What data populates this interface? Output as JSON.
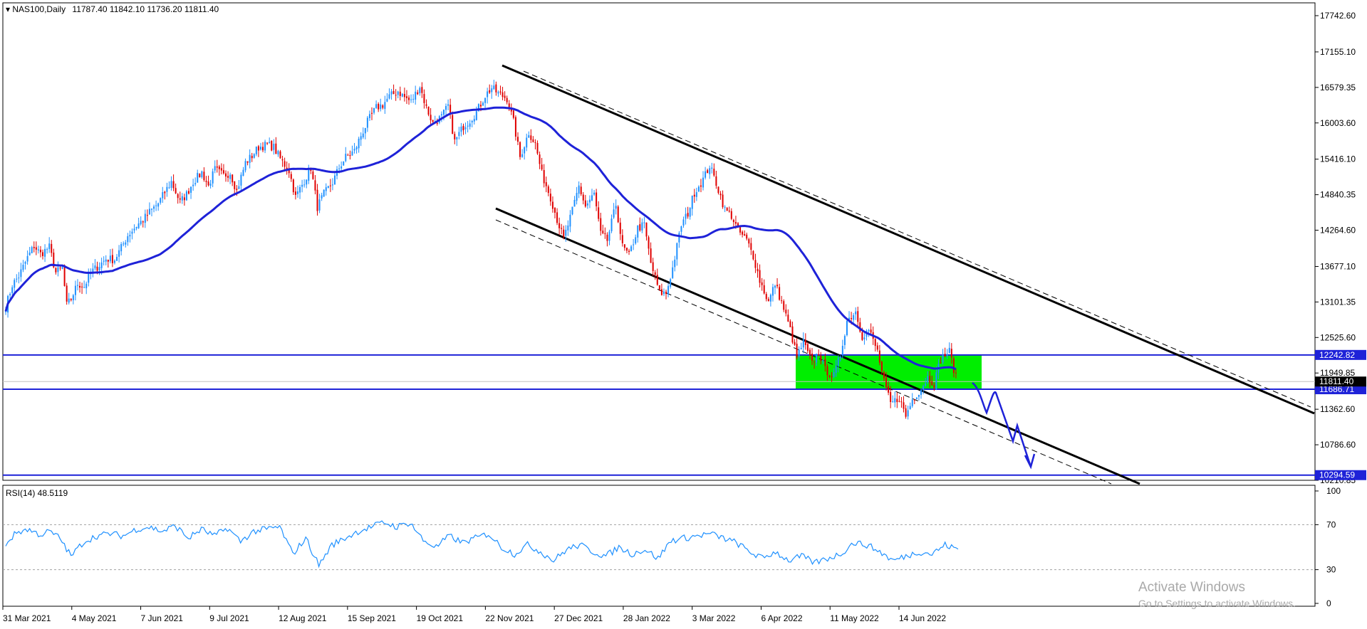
{
  "header": {
    "symbol_tf": "NAS100,Daily",
    "ohlc": "11787.40 11842.10 11736.20 11811.40",
    "rsi_label": "RSI(14) 48.5119"
  },
  "watermark": {
    "line1": "Activate Windows",
    "line2": "Go to Settings to activate Windows."
  },
  "colors": {
    "bull": "#1e90ff",
    "bear": "#e00000",
    "ma": "#1e22d8",
    "level": "#1e22d8",
    "channel": "#000000",
    "zone": "#00ee00",
    "rsi": "#1e90ff",
    "last_price_bg": "#000000"
  },
  "chart_data": [
    {
      "type": "candlestick",
      "title": "NAS100,Daily",
      "x_tick_labels": [
        "31 Mar 2021",
        "4 May 2021",
        "7 Jun 2021",
        "9 Jul 2021",
        "12 Aug 2021",
        "15 Sep 2021",
        "19 Oct 2021",
        "22 Nov 2021",
        "27 Dec 2021",
        "28 Jan 2022",
        "3 Mar 2022",
        "6 Apr 2022",
        "11 May 2022",
        "14 Jun 2022"
      ],
      "y_tick_labels": [
        "17742.60",
        "17155.10",
        "16579.35",
        "16003.60",
        "15416.10",
        "14840.35",
        "14264.60",
        "13677.10",
        "13101.35",
        "12525.60",
        "11949.85",
        "11362.60",
        "10786.60",
        "10210.85"
      ],
      "ylim": [
        10210.85,
        17742.6
      ],
      "last_price": 11811.4,
      "price_path": [
        [
          0,
          13020
        ],
        [
          3,
          13380
        ],
        [
          6,
          13520
        ],
        [
          10,
          13820
        ],
        [
          13,
          14010
        ],
        [
          16,
          13880
        ],
        [
          20,
          13990
        ],
        [
          23,
          13580
        ],
        [
          26,
          13650
        ],
        [
          28,
          13050
        ],
        [
          30,
          13150
        ],
        [
          33,
          13400
        ],
        [
          36,
          13350
        ],
        [
          39,
          13580
        ],
        [
          43,
          13700
        ],
        [
          46,
          13800
        ],
        [
          50,
          13790
        ],
        [
          53,
          13980
        ],
        [
          56,
          14180
        ],
        [
          60,
          14340
        ],
        [
          63,
          14430
        ],
        [
          66,
          14560
        ],
        [
          70,
          14700
        ],
        [
          73,
          14880
        ],
        [
          76,
          15050
        ],
        [
          80,
          14720
        ],
        [
          83,
          14850
        ],
        [
          86,
          15050
        ],
        [
          90,
          15200
        ],
        [
          93,
          14980
        ],
        [
          96,
          15250
        ],
        [
          100,
          15150
        ],
        [
          103,
          15200
        ],
        [
          106,
          14900
        ],
        [
          110,
          15360
        ],
        [
          113,
          15470
        ],
        [
          116,
          15610
        ],
        [
          120,
          15650
        ],
        [
          123,
          15610
        ],
        [
          126,
          15420
        ],
        [
          130,
          15230
        ],
        [
          133,
          14800
        ],
        [
          136,
          15000
        ],
        [
          140,
          15280
        ],
        [
          143,
          14640
        ],
        [
          146,
          14850
        ],
        [
          150,
          15040
        ],
        [
          153,
          15280
        ],
        [
          156,
          15450
        ],
        [
          160,
          15550
        ],
        [
          163,
          15800
        ],
        [
          166,
          16020
        ],
        [
          170,
          16250
        ],
        [
          173,
          16300
        ],
        [
          176,
          16430
        ],
        [
          180,
          16520
        ],
        [
          183,
          16420
        ],
        [
          186,
          16350
        ],
        [
          190,
          16600
        ],
        [
          193,
          16250
        ],
        [
          196,
          16000
        ],
        [
          200,
          16100
        ],
        [
          203,
          16280
        ],
        [
          206,
          15700
        ],
        [
          210,
          15950
        ],
        [
          213,
          16050
        ],
        [
          216,
          16180
        ],
        [
          220,
          16450
        ],
        [
          223,
          16570
        ],
        [
          226,
          16480
        ],
        [
          230,
          16400
        ],
        [
          233,
          16020
        ],
        [
          236,
          15450
        ],
        [
          240,
          15850
        ],
        [
          243,
          15660
        ],
        [
          246,
          15180
        ],
        [
          250,
          14800
        ],
        [
          253,
          14440
        ],
        [
          256,
          14120
        ],
        [
          260,
          14580
        ],
        [
          263,
          14980
        ],
        [
          266,
          14650
        ],
        [
          270,
          14850
        ],
        [
          273,
          14200
        ],
        [
          276,
          14100
        ],
        [
          280,
          14680
        ],
        [
          283,
          14000
        ],
        [
          286,
          13850
        ],
        [
          290,
          14300
        ],
        [
          293,
          14350
        ],
        [
          296,
          13730
        ],
        [
          300,
          13250
        ],
        [
          303,
          13240
        ],
        [
          306,
          13650
        ],
        [
          310,
          14350
        ],
        [
          313,
          14540
        ],
        [
          316,
          14880
        ],
        [
          320,
          15090
        ],
        [
          323,
          15310
        ],
        [
          326,
          15030
        ],
        [
          330,
          14600
        ],
        [
          333,
          14500
        ],
        [
          336,
          14260
        ],
        [
          340,
          14100
        ],
        [
          343,
          13850
        ],
        [
          346,
          13450
        ],
        [
          350,
          13100
        ],
        [
          353,
          13400
        ],
        [
          356,
          13100
        ],
        [
          360,
          12650
        ],
        [
          363,
          12200
        ],
        [
          366,
          12450
        ],
        [
          370,
          12100
        ],
        [
          373,
          12300
        ],
        [
          376,
          12000
        ],
        [
          380,
          11900
        ],
        [
          383,
          12250
        ],
        [
          386,
          12800
        ],
        [
          390,
          12950
        ],
        [
          393,
          12550
        ],
        [
          396,
          12650
        ],
        [
          400,
          12300
        ],
        [
          403,
          11800
        ],
        [
          406,
          11450
        ],
        [
          410,
          11550
        ],
        [
          413,
          11250
        ],
        [
          416,
          11520
        ],
        [
          420,
          11700
        ],
        [
          423,
          11880
        ],
        [
          426,
          11780
        ],
        [
          429,
          12180
        ],
        [
          433,
          12300
        ],
        [
          436,
          11880
        ]
      ]
    },
    {
      "type": "line",
      "title": "RSI(14) 48.5119",
      "last_value": 48.5119,
      "y_tick_labels": [
        "100",
        "70",
        "30",
        "0"
      ],
      "ylim": [
        0,
        100
      ],
      "levels": [
        70,
        30
      ],
      "rsi_path": [
        [
          0,
          53
        ],
        [
          5,
          63
        ],
        [
          10,
          66
        ],
        [
          16,
          61
        ],
        [
          20,
          64
        ],
        [
          25,
          58
        ],
        [
          30,
          42
        ],
        [
          36,
          55
        ],
        [
          42,
          60
        ],
        [
          48,
          62
        ],
        [
          54,
          60
        ],
        [
          60,
          66
        ],
        [
          66,
          68
        ],
        [
          72,
          64
        ],
        [
          78,
          69
        ],
        [
          84,
          58
        ],
        [
          90,
          66
        ],
        [
          96,
          60
        ],
        [
          102,
          67
        ],
        [
          108,
          55
        ],
        [
          114,
          64
        ],
        [
          120,
          66
        ],
        [
          126,
          68
        ],
        [
          132,
          44
        ],
        [
          138,
          58
        ],
        [
          144,
          34
        ],
        [
          150,
          52
        ],
        [
          156,
          58
        ],
        [
          162,
          64
        ],
        [
          168,
          68
        ],
        [
          174,
          72
        ],
        [
          180,
          68
        ],
        [
          186,
          72
        ],
        [
          192,
          56
        ],
        [
          198,
          50
        ],
        [
          204,
          60
        ],
        [
          210,
          54
        ],
        [
          216,
          58
        ],
        [
          222,
          62
        ],
        [
          228,
          50
        ],
        [
          234,
          44
        ],
        [
          240,
          52
        ],
        [
          246,
          46
        ],
        [
          252,
          38
        ],
        [
          258,
          48
        ],
        [
          264,
          52
        ],
        [
          270,
          46
        ],
        [
          276,
          42
        ],
        [
          282,
          50
        ],
        [
          288,
          44
        ],
        [
          294,
          48
        ],
        [
          300,
          40
        ],
        [
          306,
          56
        ],
        [
          312,
          58
        ],
        [
          318,
          60
        ],
        [
          324,
          62
        ],
        [
          330,
          58
        ],
        [
          336,
          54
        ],
        [
          342,
          46
        ],
        [
          348,
          40
        ],
        [
          354,
          46
        ],
        [
          360,
          38
        ],
        [
          366,
          42
        ],
        [
          372,
          36
        ],
        [
          378,
          40
        ],
        [
          384,
          44
        ],
        [
          390,
          54
        ],
        [
          396,
          52
        ],
        [
          402,
          46
        ],
        [
          408,
          38
        ],
        [
          414,
          42
        ],
        [
          420,
          46
        ],
        [
          426,
          44
        ],
        [
          432,
          52
        ],
        [
          438,
          48
        ]
      ]
    }
  ],
  "drawings": {
    "channel_upper_top": [
      [
        0,
        16875
      ],
      [
        1,
        11200
      ]
    ],
    "channel_lower_top": [
      [
        0,
        14480
      ],
      [
        1,
        10070
      ]
    ],
    "horizontal_levels": [
      12242.82,
      11686.71,
      10294.59
    ],
    "level_labels": [
      "12242.82",
      "11686.71",
      "10294.59"
    ],
    "zone": {
      "from": 11686.71,
      "to": 12242.82
    }
  }
}
